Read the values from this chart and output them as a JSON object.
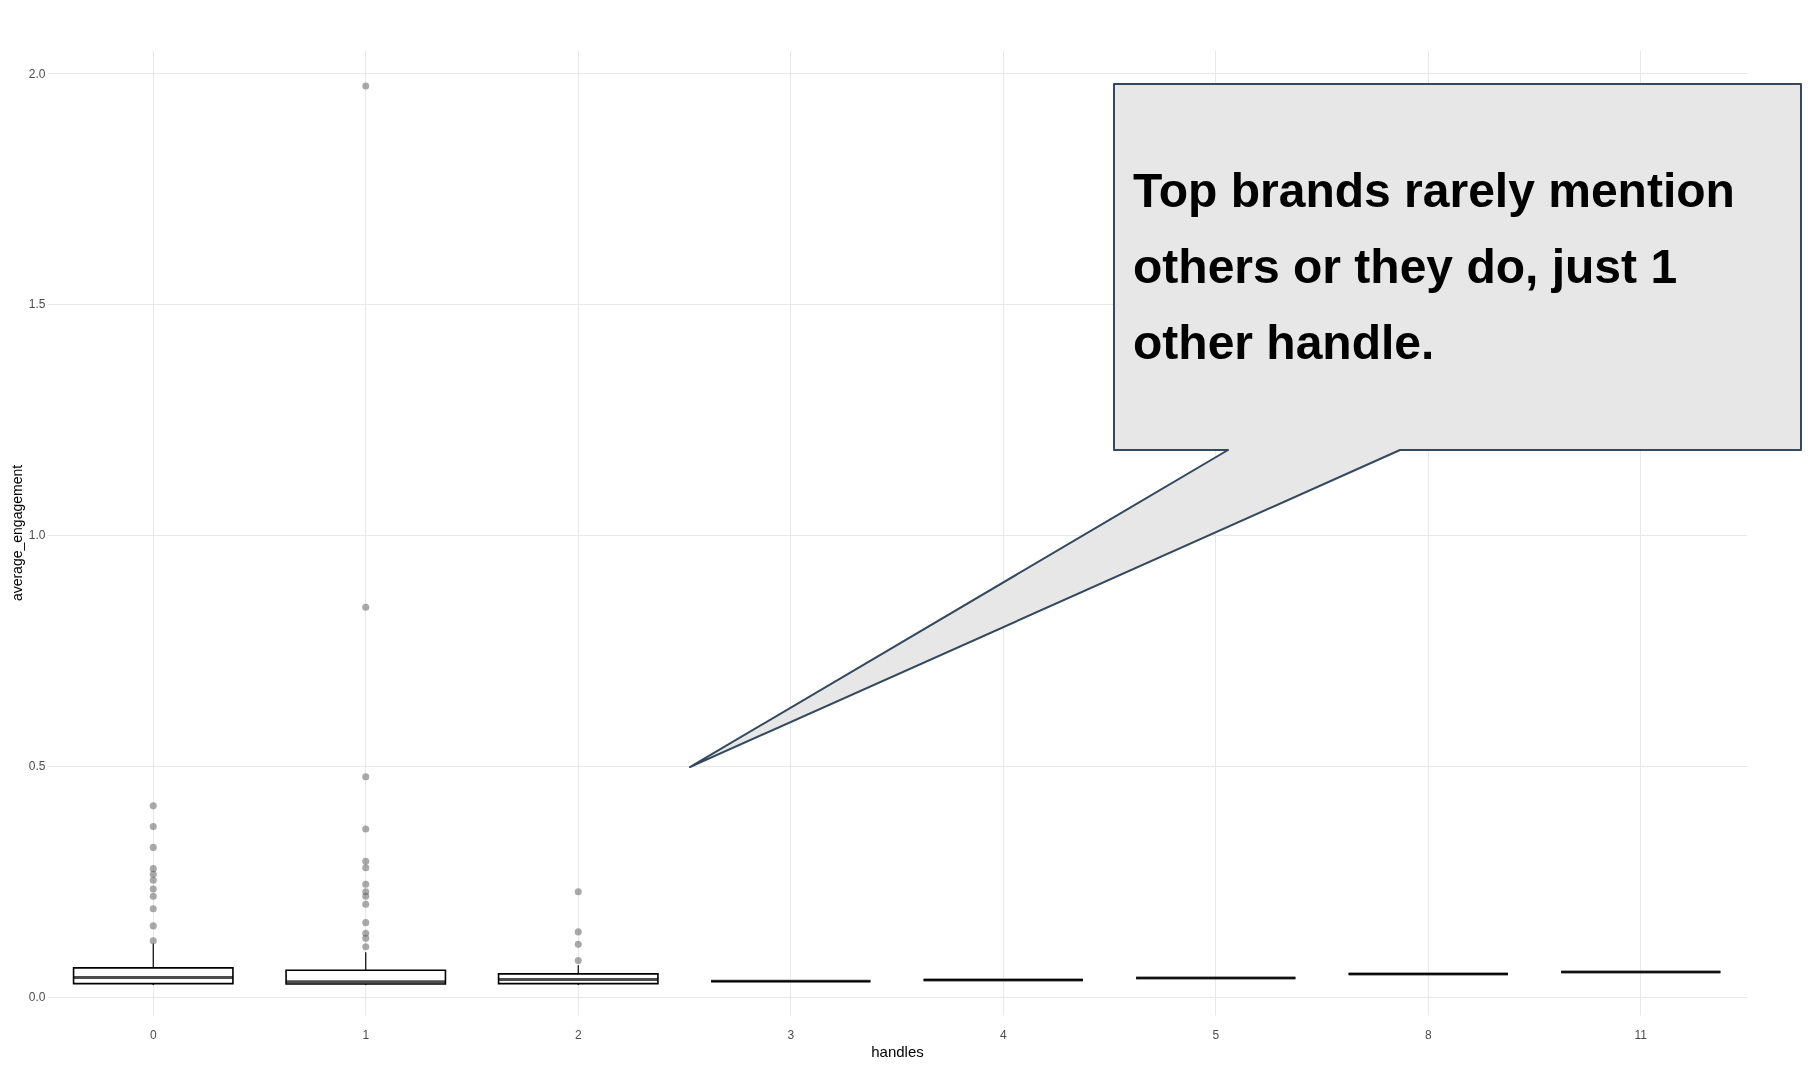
{
  "chart_data": {
    "type": "box",
    "xlabel": "handles",
    "ylabel": "average_engagement",
    "categories": [
      "0",
      "1",
      "2",
      "3",
      "4",
      "5",
      "8",
      "11"
    ],
    "boxes": [
      {
        "low": 0.025,
        "q1": 0.028,
        "median": 0.041,
        "q3": 0.062,
        "high": 0.115,
        "outliers": [
          0.413,
          0.368,
          0.323,
          0.277,
          0.265,
          0.252,
          0.233,
          0.217,
          0.19,
          0.153,
          0.121
        ]
      },
      {
        "low": 0.025,
        "q1": 0.027,
        "median": 0.032,
        "q3": 0.057,
        "high": 0.096,
        "outliers": [
          1.972,
          0.843,
          0.476,
          0.363,
          0.293,
          0.279,
          0.243,
          0.227,
          0.217,
          0.2,
          0.16,
          0.137,
          0.126,
          0.108
        ]
      },
      {
        "low": 0.025,
        "q1": 0.028,
        "median": 0.037,
        "q3": 0.049,
        "high": 0.068,
        "outliers": [
          0.227,
          0.14,
          0.113,
          0.078
        ]
      },
      {
        "low": 0.033,
        "q1": 0.033,
        "median": 0.033,
        "q3": 0.033,
        "high": 0.033
      },
      {
        "low": 0.036,
        "q1": 0.036,
        "median": 0.036,
        "q3": 0.036,
        "high": 0.036
      },
      {
        "low": 0.04,
        "q1": 0.04,
        "median": 0.04,
        "q3": 0.04,
        "high": 0.04
      },
      {
        "low": 0.049,
        "q1": 0.049,
        "median": 0.049,
        "q3": 0.049,
        "high": 0.049
      },
      {
        "low": 0.053,
        "q1": 0.053,
        "median": 0.053,
        "q3": 0.053,
        "high": 0.053
      }
    ],
    "ylim": [
      -0.04,
      2.05
    ],
    "yticks": [
      {
        "value": 0,
        "label": "0.0"
      },
      {
        "value": 0.5,
        "label": "0.5"
      },
      {
        "value": 1,
        "label": "1.0"
      },
      {
        "value": 1.5,
        "label": "1.5"
      },
      {
        "value": 2,
        "label": "2.0"
      }
    ],
    "grid": true,
    "annotations": [
      "Top brands rarely mention others or they do, just 1 other handle."
    ]
  }
}
